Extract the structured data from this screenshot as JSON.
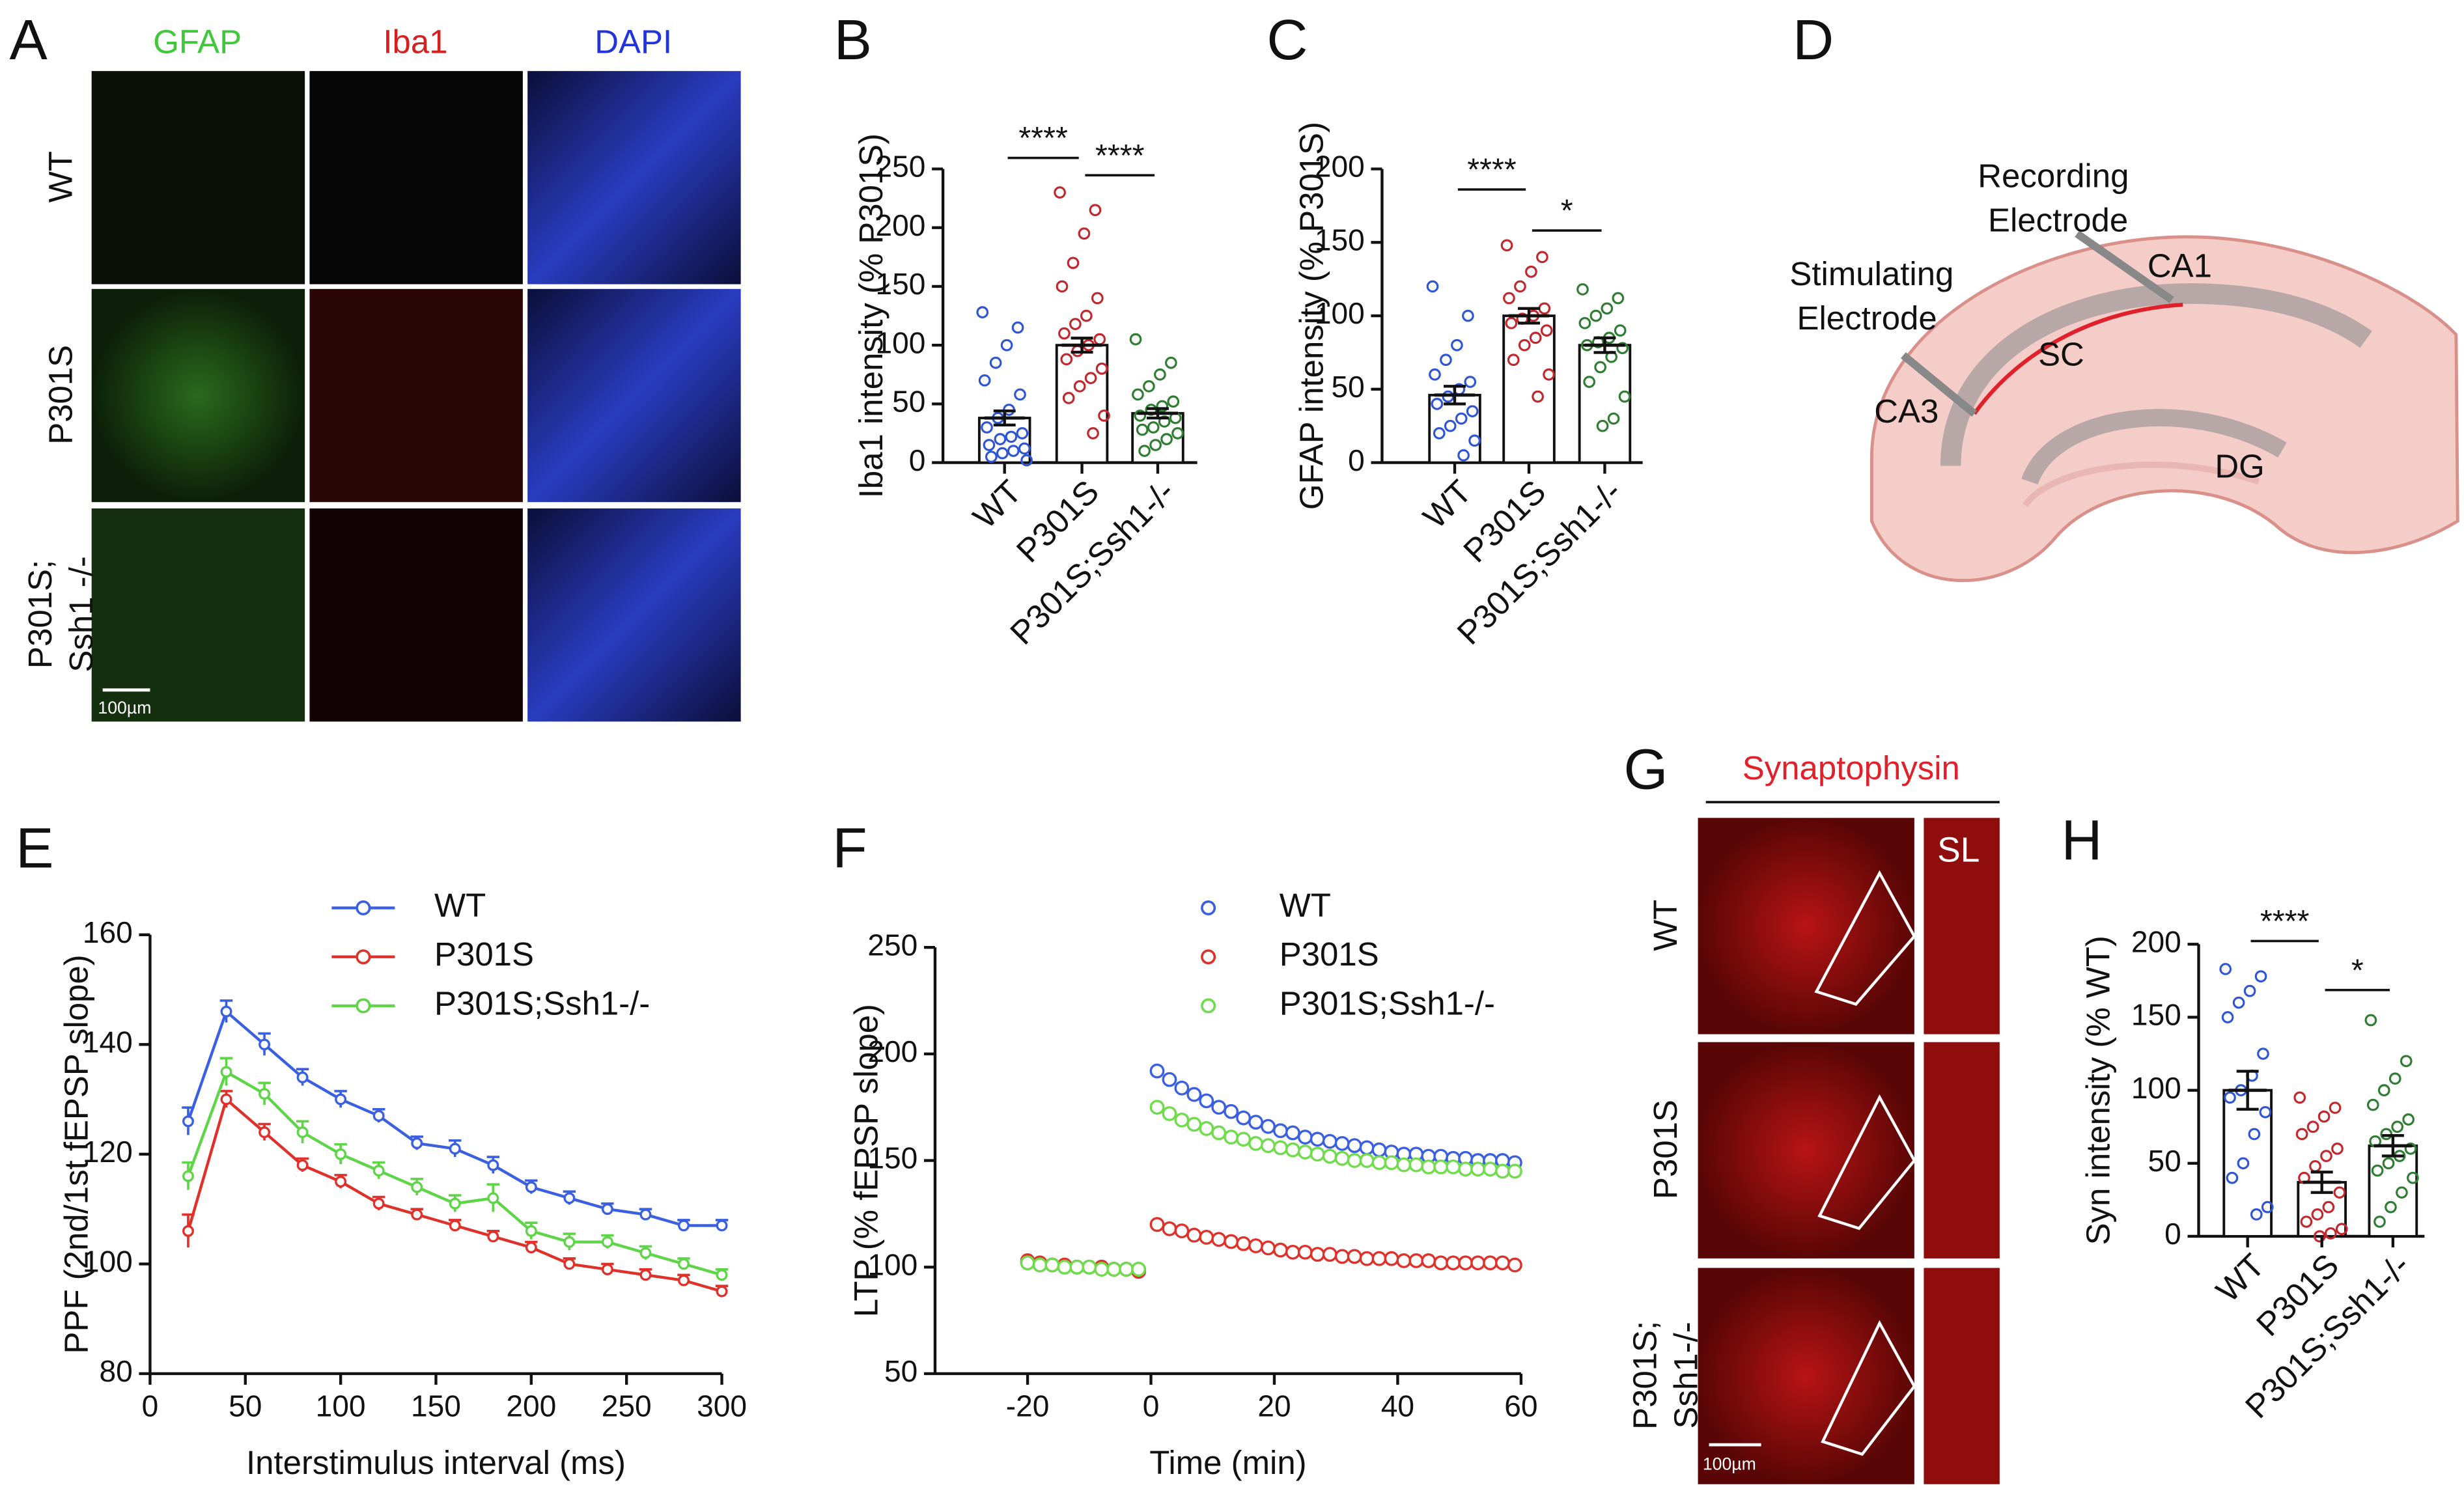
{
  "figures": {
    "A": {
      "letter": "A",
      "columns": [
        "GFAP",
        "Iba1",
        "DAPI"
      ],
      "rows": [
        [
          "WT"
        ],
        [
          "P301S"
        ],
        [
          "P301S;",
          "Ssh1 -/-"
        ]
      ],
      "scale_bar": "100µm"
    },
    "D": {
      "letter": "D",
      "recording_electrode": [
        "Recording",
        "Electrode"
      ],
      "stimulating_electrode": [
        "Stimulating",
        "Electrode"
      ],
      "regions": [
        "CA1",
        "SC",
        "CA3",
        "DG"
      ]
    },
    "G": {
      "letter": "G",
      "title": "Synaptophysin",
      "inset": "SL",
      "rows": [
        [
          "WT"
        ],
        [
          "P301S"
        ],
        [
          "P301S;",
          "Ssh1-/-"
        ]
      ],
      "scale_bar": "100µm"
    }
  },
  "chart_data": [
    {
      "type": "bar",
      "panel": "B",
      "ylabel": "Iba1 intensity (% P301S)",
      "categories": [
        "WT",
        "P301S",
        "P301S;Ssh1-/-"
      ],
      "colors": [
        "#2f55d4",
        "#c0282d",
        "#2e7d32"
      ],
      "values": [
        38,
        100,
        42
      ],
      "errors": [
        6,
        6,
        4
      ],
      "points": [
        [
          128,
          115,
          100,
          85,
          70,
          58,
          45,
          38,
          30,
          25,
          22,
          20,
          15,
          12,
          10,
          8,
          5,
          2
        ],
        [
          230,
          215,
          195,
          170,
          150,
          140,
          125,
          118,
          110,
          105,
          100,
          95,
          88,
          80,
          72,
          65,
          55,
          40,
          25
        ],
        [
          105,
          85,
          75,
          65,
          58,
          52,
          48,
          45,
          40,
          38,
          35,
          30,
          28,
          25,
          20,
          15,
          10
        ]
      ],
      "ylim": [
        0,
        250
      ],
      "yticks": [
        0,
        50,
        100,
        150,
        200,
        250
      ],
      "annotations": [
        "****",
        "****"
      ]
    },
    {
      "type": "bar",
      "panel": "C",
      "ylabel": "GFAP intensity (% P301S)",
      "categories": [
        "WT",
        "P301S",
        "P301S;Ssh1-/-"
      ],
      "colors": [
        "#2f55d4",
        "#c0282d",
        "#2e7d32"
      ],
      "values": [
        46,
        100,
        80
      ],
      "errors": [
        6,
        5,
        5
      ],
      "points": [
        [
          120,
          100,
          80,
          70,
          60,
          55,
          50,
          45,
          40,
          35,
          30,
          25,
          20,
          15,
          5
        ],
        [
          148,
          140,
          130,
          120,
          112,
          105,
          100,
          98,
          95,
          90,
          85,
          80,
          70,
          60,
          45
        ],
        [
          118,
          112,
          105,
          100,
          95,
          90,
          85,
          82,
          80,
          78,
          72,
          65,
          55,
          45,
          30,
          25
        ]
      ],
      "ylim": [
        0,
        200
      ],
      "yticks": [
        0,
        50,
        100,
        150,
        200
      ],
      "annotations": [
        "****",
        "*"
      ]
    },
    {
      "type": "line",
      "panel": "E",
      "xlabel": "Interstimulus interval (ms)",
      "ylabel": "PPF (2nd/1st fEPSP slope)",
      "x": [
        20,
        40,
        60,
        80,
        100,
        120,
        140,
        160,
        180,
        200,
        220,
        240,
        260,
        280,
        300
      ],
      "series": [
        {
          "name": "WT",
          "color": "#3a5fe0",
          "values": [
            126,
            146,
            140,
            134,
            130,
            127,
            122,
            121,
            118,
            114,
            112,
            110,
            109,
            107,
            107
          ],
          "errors": [
            2.5,
            2,
            2,
            1.5,
            1.5,
            1.2,
            1.2,
            1.5,
            1.5,
            1.2,
            1.2,
            1,
            1,
            1,
            1
          ]
        },
        {
          "name": "P301S",
          "color": "#e0302a",
          "values": [
            106,
            130,
            124,
            118,
            115,
            111,
            109,
            107,
            105,
            103,
            100,
            99,
            98,
            97,
            95
          ],
          "errors": [
            3,
            1.5,
            1.5,
            1.2,
            1.2,
            1.2,
            1,
            1,
            1,
            1,
            1,
            1,
            1,
            1,
            1
          ]
        },
        {
          "name": "P301S;Ssh1-/-",
          "color": "#5ed447",
          "values": [
            116,
            135,
            131,
            124,
            120,
            117,
            114,
            111,
            112,
            106,
            104,
            104,
            102,
            100,
            98
          ],
          "errors": [
            2.5,
            2.5,
            2,
            2,
            1.8,
            1.5,
            1.5,
            1.5,
            2.5,
            1.5,
            1.5,
            1.2,
            1.2,
            1,
            1
          ]
        }
      ],
      "xlim": [
        0,
        300
      ],
      "xticks": [
        0,
        50,
        100,
        150,
        200,
        250,
        300
      ],
      "ylim": [
        80,
        160
      ],
      "yticks": [
        80,
        100,
        120,
        140,
        160
      ]
    },
    {
      "type": "scatter",
      "panel": "F",
      "xlabel": "Time (min)",
      "ylabel": "LTP (% fEPSP slope)",
      "x": [
        -20,
        -18,
        -16,
        -14,
        -12,
        -10,
        -8,
        -6,
        -4,
        -2,
        1,
        3,
        5,
        7,
        9,
        11,
        13,
        15,
        17,
        19,
        21,
        23,
        25,
        27,
        29,
        31,
        33,
        35,
        37,
        39,
        41,
        43,
        45,
        47,
        49,
        51,
        53,
        55,
        57,
        59
      ],
      "series": [
        {
          "name": "WT",
          "color": "#3a5fe0",
          "values": [
            102,
            101,
            101,
            100,
            100,
            100,
            100,
            99,
            99,
            99,
            192,
            188,
            184,
            181,
            178,
            175,
            173,
            170,
            168,
            166,
            164,
            163,
            161,
            160,
            159,
            158,
            157,
            156,
            155,
            154,
            153,
            153,
            152,
            152,
            151,
            151,
            150,
            150,
            150,
            149
          ]
        },
        {
          "name": "P301S",
          "color": "#e0302a",
          "values": [
            103,
            102,
            101,
            101,
            100,
            100,
            100,
            99,
            99,
            98,
            120,
            118,
            117,
            115,
            114,
            113,
            112,
            111,
            110,
            109,
            108,
            107,
            107,
            106,
            106,
            105,
            105,
            104,
            104,
            104,
            103,
            103,
            103,
            102,
            102,
            102,
            102,
            102,
            102,
            101
          ]
        },
        {
          "name": "P301S;Ssh1-/-",
          "color": "#6fdc4c",
          "values": [
            102,
            101,
            101,
            100,
            100,
            100,
            99,
            99,
            99,
            99,
            175,
            172,
            169,
            167,
            165,
            163,
            161,
            160,
            158,
            157,
            156,
            155,
            154,
            153,
            152,
            151,
            150,
            150,
            149,
            149,
            148,
            148,
            147,
            147,
            147,
            146,
            146,
            146,
            145,
            145
          ]
        }
      ],
      "xlim": [
        -35,
        60
      ],
      "xticks": [
        -20,
        0,
        20,
        40,
        60
      ],
      "ylim": [
        50,
        250
      ],
      "yticks": [
        50,
        100,
        150,
        200,
        250
      ]
    },
    {
      "type": "bar",
      "panel": "H",
      "ylabel": "Syn intensity (% WT)",
      "categories": [
        "WT",
        "P301S",
        "P301S;Ssh1-/-"
      ],
      "colors": [
        "#2f55d4",
        "#c0282d",
        "#2e7d32"
      ],
      "values": [
        100,
        37,
        62
      ],
      "errors": [
        13,
        7,
        7
      ],
      "points": [
        [
          183,
          178,
          168,
          160,
          150,
          125,
          110,
          100,
          95,
          85,
          70,
          50,
          40,
          20,
          15
        ],
        [
          95,
          88,
          82,
          75,
          70,
          60,
          55,
          48,
          40,
          30,
          20,
          15,
          10,
          5,
          2,
          0
        ],
        [
          148,
          120,
          108,
          100,
          90,
          80,
          75,
          70,
          65,
          60,
          55,
          50,
          45,
          40,
          30,
          20,
          10
        ]
      ],
      "ylim": [
        0,
        200
      ],
      "yticks": [
        0,
        50,
        100,
        150,
        200
      ],
      "annotations": [
        "****",
        "*"
      ]
    }
  ]
}
